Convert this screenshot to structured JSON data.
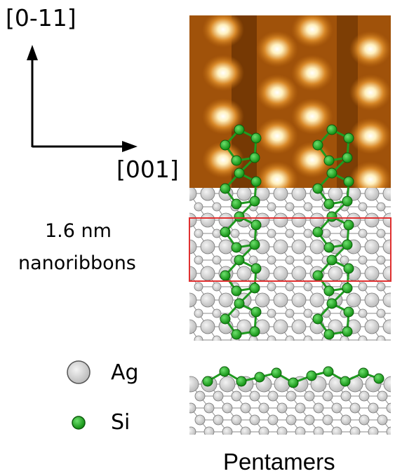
{
  "axes": {
    "vertical_label": "[0-11]",
    "horizontal_label": "[001]",
    "color": "#000000"
  },
  "annotation": {
    "line1": "1.6 nm",
    "line2": "nanoribbons",
    "highlight_color": "#e03030"
  },
  "legend": {
    "items": [
      {
        "symbol": "Ag",
        "label": "Ag",
        "color": "#d8d8d8"
      },
      {
        "symbol": "Si",
        "label": "Si",
        "color": "#22b022"
      }
    ]
  },
  "caption": "Pentamers",
  "colors": {
    "stm_dark": "#5a2a00",
    "stm_mid": "#b8650c",
    "stm_bright": "#fff2c8",
    "silver_atom": "#dcdcdc",
    "silicon_atom": "#22b022"
  }
}
